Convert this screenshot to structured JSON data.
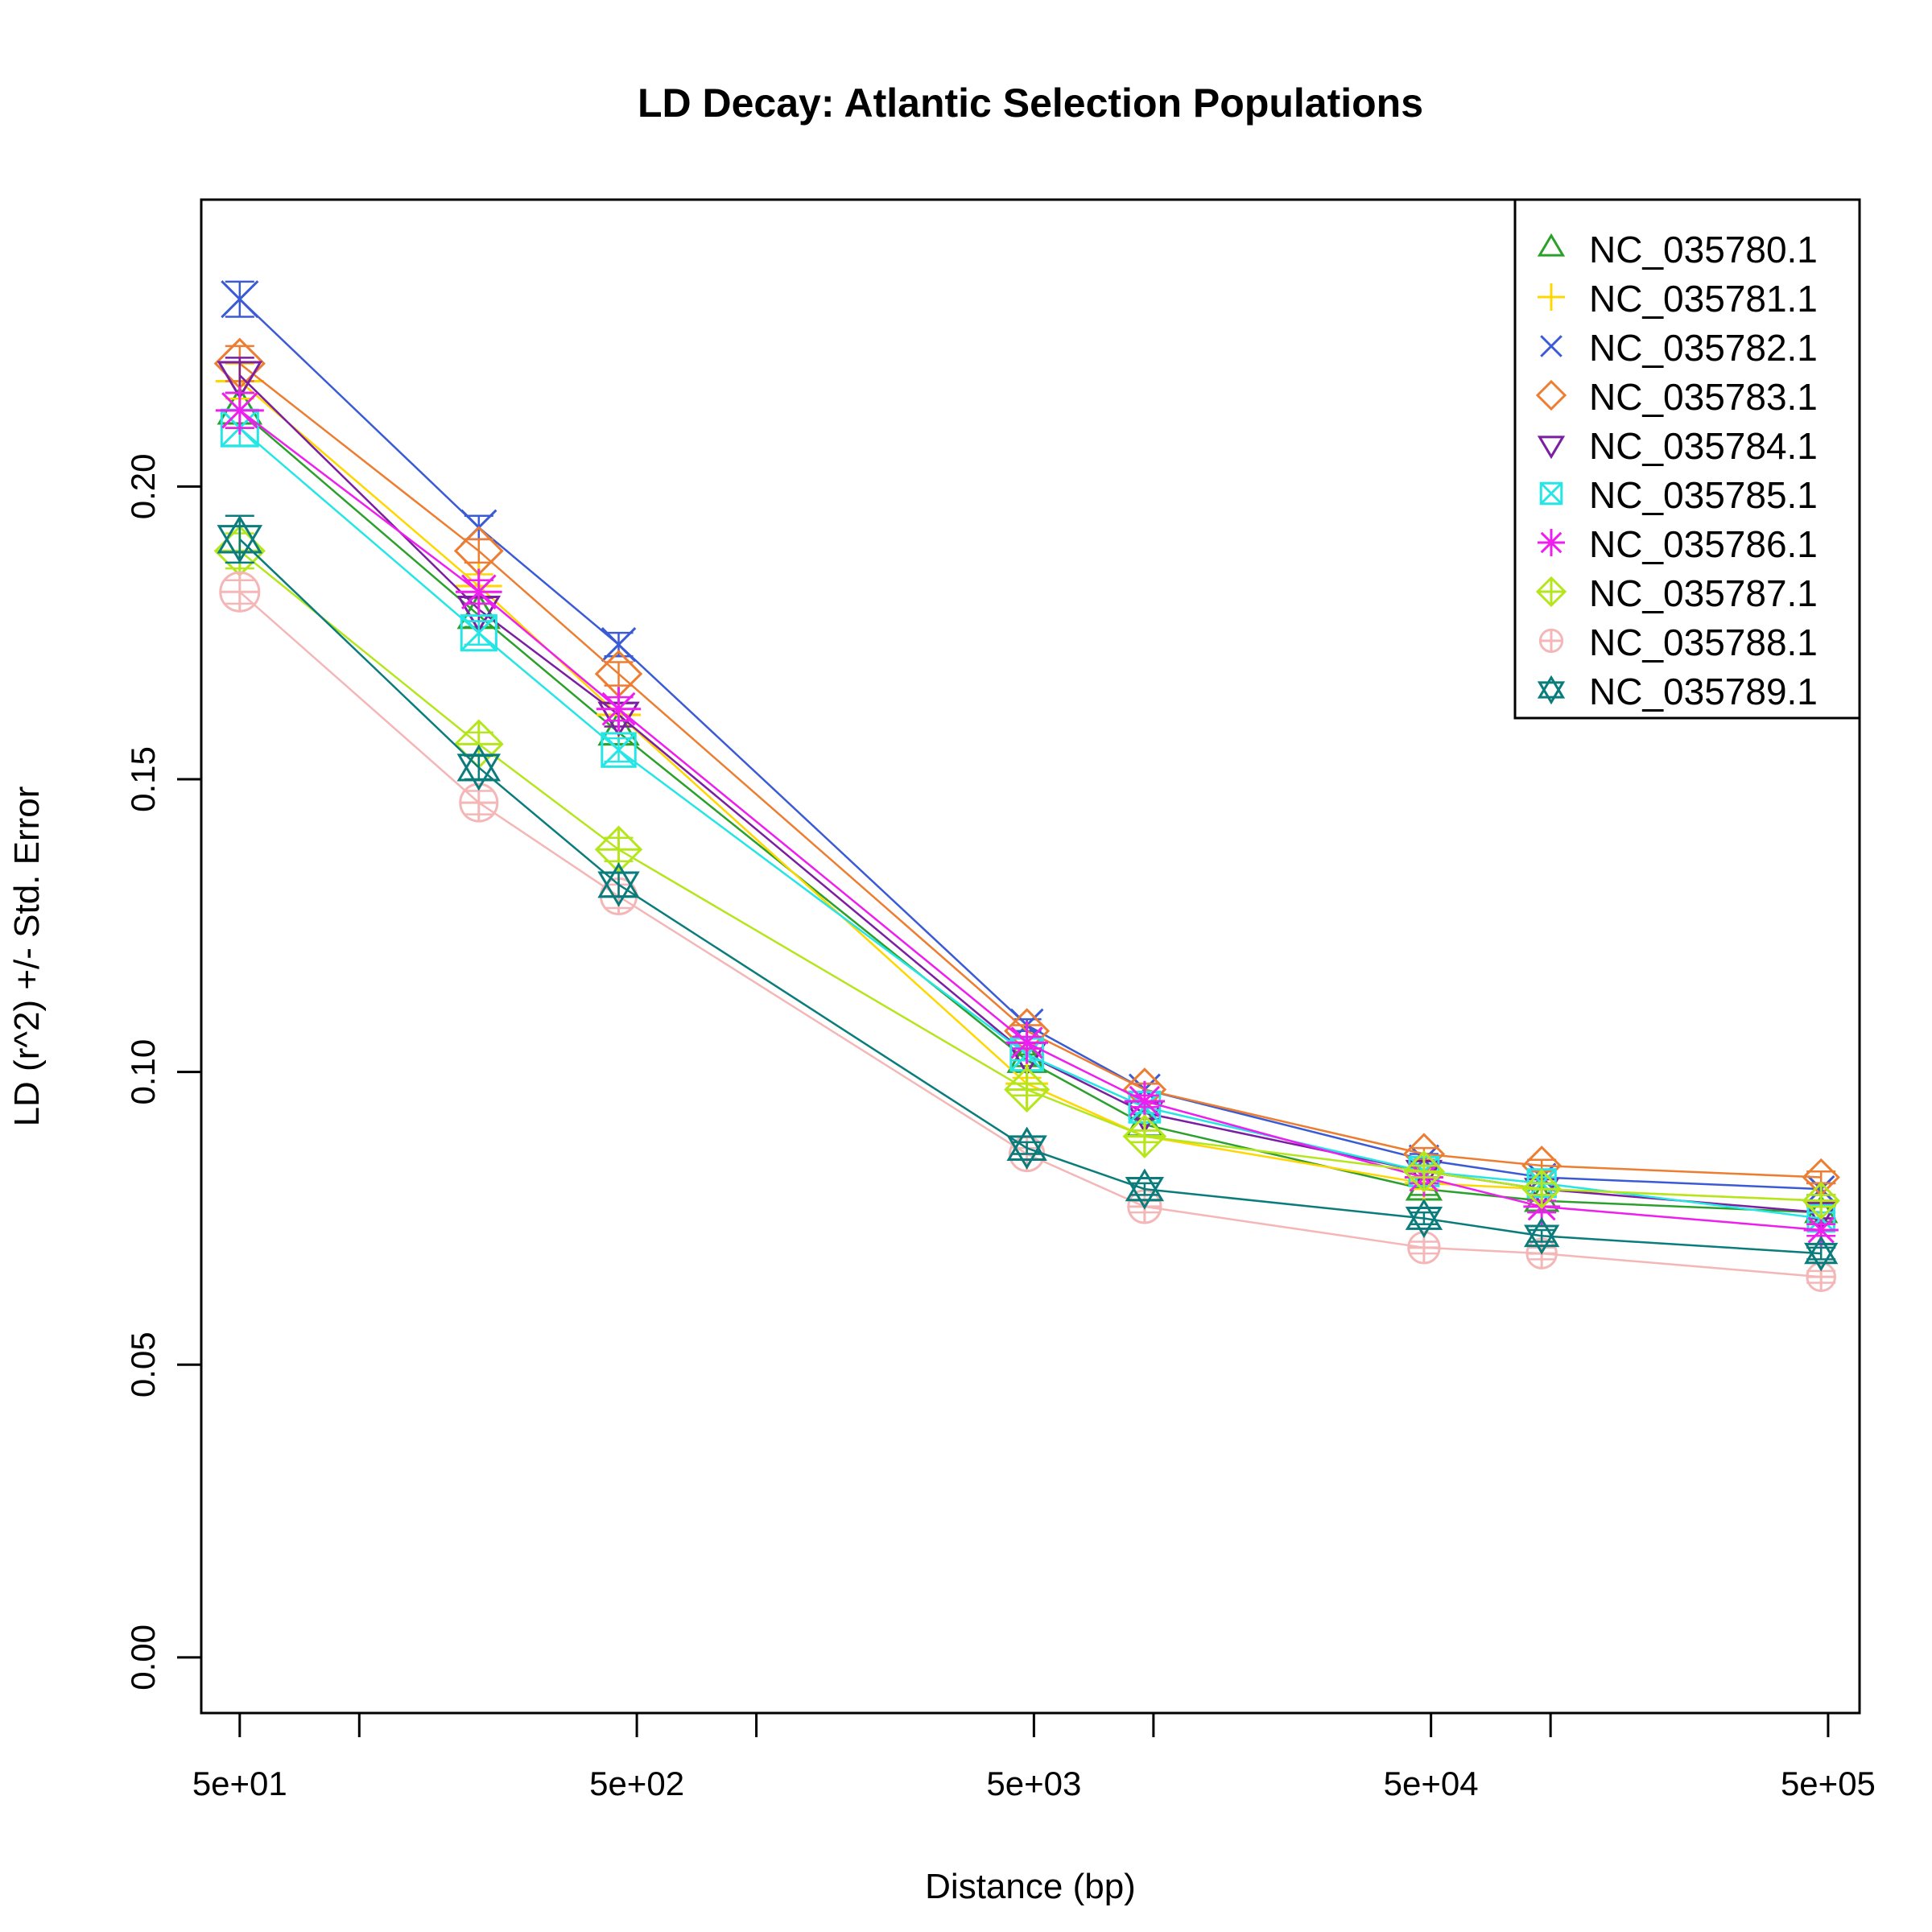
{
  "chart_data": {
    "type": "line",
    "title": "LD Decay: Atlantic Selection Populations",
    "xlabel": "Distance (bp)",
    "ylabel": "LD (r^2) +/- Std. Error",
    "x_scale": "log",
    "xlim": [
      40,
      600000
    ],
    "ylim": [
      -0.0095,
      0.249
    ],
    "x_major_ticks": [
      50,
      500,
      5000,
      50000,
      500000
    ],
    "x_major_tick_labels": [
      "5e+01",
      "5e+02",
      "5e+03",
      "5e+04",
      "5e+05"
    ],
    "x_minor_ticks": [
      100,
      1000,
      10000,
      100000
    ],
    "y_ticks": [
      0.0,
      0.05,
      0.1,
      0.15,
      0.2
    ],
    "y_tick_labels": [
      "0.00",
      "0.05",
      "0.10",
      "0.15",
      "0.20"
    ],
    "grid": false,
    "legend_position": "top-right",
    "x": [
      50,
      200,
      450,
      4800,
      9500,
      48000,
      95000,
      480000
    ],
    "series": [
      {
        "name": "NC_035780.1",
        "color": "#2ca02c",
        "marker": "triangle-up",
        "values": [
          0.213,
          0.178,
          0.158,
          0.102,
          0.091,
          0.08,
          0.078,
          0.076
        ],
        "se": [
          0.003,
          0.002,
          0.002,
          0.001,
          0.001,
          0.001,
          0.001,
          0.001
        ]
      },
      {
        "name": "NC_035781.1",
        "color": "#ffd700",
        "marker": "plus",
        "values": [
          0.218,
          0.183,
          0.161,
          0.098,
          0.089,
          0.081,
          0.08,
          0.078
        ],
        "se": [
          0.003,
          0.002,
          0.002,
          0.001,
          0.001,
          0.001,
          0.001,
          0.001
        ]
      },
      {
        "name": "NC_035782.1",
        "color": "#3b5bd6",
        "marker": "x",
        "values": [
          0.232,
          0.193,
          0.173,
          0.108,
          0.097,
          0.085,
          0.082,
          0.08
        ],
        "se": [
          0.003,
          0.002,
          0.002,
          0.001,
          0.001,
          0.001,
          0.001,
          0.001
        ]
      },
      {
        "name": "NC_035783.1",
        "color": "#ed7d31",
        "marker": "diamond",
        "values": [
          0.221,
          0.189,
          0.168,
          0.107,
          0.097,
          0.086,
          0.084,
          0.082
        ],
        "se": [
          0.003,
          0.002,
          0.002,
          0.001,
          0.001,
          0.001,
          0.001,
          0.001
        ]
      },
      {
        "name": "NC_035784.1",
        "color": "#7b1fa2",
        "marker": "triangle-down",
        "values": [
          0.219,
          0.179,
          0.161,
          0.103,
          0.093,
          0.083,
          0.08,
          0.076
        ],
        "se": [
          0.003,
          0.002,
          0.002,
          0.001,
          0.001,
          0.001,
          0.001,
          0.001
        ]
      },
      {
        "name": "NC_035785.1",
        "color": "#26e5e5",
        "marker": "square-x",
        "values": [
          0.21,
          0.175,
          0.155,
          0.103,
          0.094,
          0.083,
          0.081,
          0.075
        ],
        "se": [
          0.003,
          0.002,
          0.002,
          0.001,
          0.001,
          0.001,
          0.001,
          0.001
        ]
      },
      {
        "name": "NC_035786.1",
        "color": "#ee1fee",
        "marker": "asterisk",
        "values": [
          0.213,
          0.182,
          0.162,
          0.105,
          0.095,
          0.082,
          0.077,
          0.073
        ],
        "se": [
          0.003,
          0.002,
          0.002,
          0.001,
          0.001,
          0.001,
          0.001,
          0.001
        ]
      },
      {
        "name": "NC_035787.1",
        "color": "#b5e61d",
        "marker": "diamond-plus",
        "values": [
          0.189,
          0.156,
          0.138,
          0.097,
          0.089,
          0.083,
          0.08,
          0.078
        ],
        "se": [
          0.003,
          0.002,
          0.002,
          0.001,
          0.001,
          0.001,
          0.001,
          0.001
        ]
      },
      {
        "name": "NC_035788.1",
        "color": "#f4b6b6",
        "marker": "circle-plus",
        "values": [
          0.182,
          0.146,
          0.13,
          0.086,
          0.077,
          0.07,
          0.069,
          0.065
        ],
        "se": [
          0.002,
          0.002,
          0.002,
          0.001,
          0.001,
          0.001,
          0.001,
          0.001
        ]
      },
      {
        "name": "NC_035789.1",
        "color": "#0b7c7c",
        "marker": "star-of-david",
        "values": [
          0.191,
          0.152,
          0.132,
          0.087,
          0.08,
          0.075,
          0.072,
          0.069
        ],
        "se": [
          0.004,
          0.002,
          0.002,
          0.001,
          0.001,
          0.001,
          0.001,
          0.001
        ]
      }
    ]
  }
}
